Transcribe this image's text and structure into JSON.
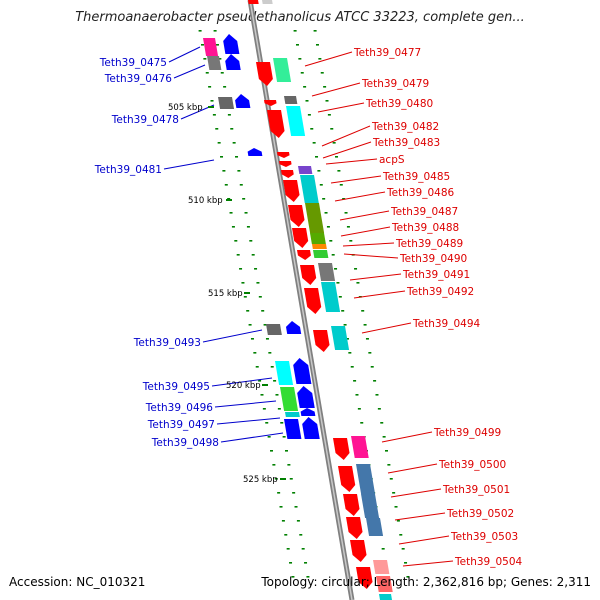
{
  "title": "Thermoanaerobacter pseudethanolicus ATCC 33223, complete gen...",
  "footer": {
    "accession": "Accession: NC_010321",
    "topology": "Topology: circular; Length: 2,362,816 bp; Genes: 2,311"
  },
  "colors": {
    "forward": "#ff0000",
    "reverse": "#0000ff",
    "backbone": "#808080",
    "ticks": "#008000"
  },
  "scale_labels": [
    "505 kbp",
    "510 kbp",
    "515 kbp",
    "520 kbp",
    "525 kbp"
  ],
  "genes_forward": [
    "Teth39_0477",
    "Teth39_0479",
    "Teth39_0480",
    "Teth39_0482",
    "Teth39_0483",
    "acpS",
    "Teth39_0485",
    "Teth39_0486",
    "Teth39_0487",
    "Teth39_0488",
    "Teth39_0489",
    "Teth39_0490",
    "Teth39_0491",
    "Teth39_0492",
    "Teth39_0494",
    "Teth39_0499",
    "Teth39_0500",
    "Teth39_0501",
    "Teth39_0502",
    "Teth39_0503",
    "Teth39_0504"
  ],
  "genes_reverse": [
    "Teth39_0475",
    "Teth39_0476",
    "Teth39_0478",
    "Teth39_0481",
    "Teth39_0493",
    "Teth39_0495",
    "Teth39_0496",
    "Teth39_0497",
    "Teth39_0498"
  ]
}
